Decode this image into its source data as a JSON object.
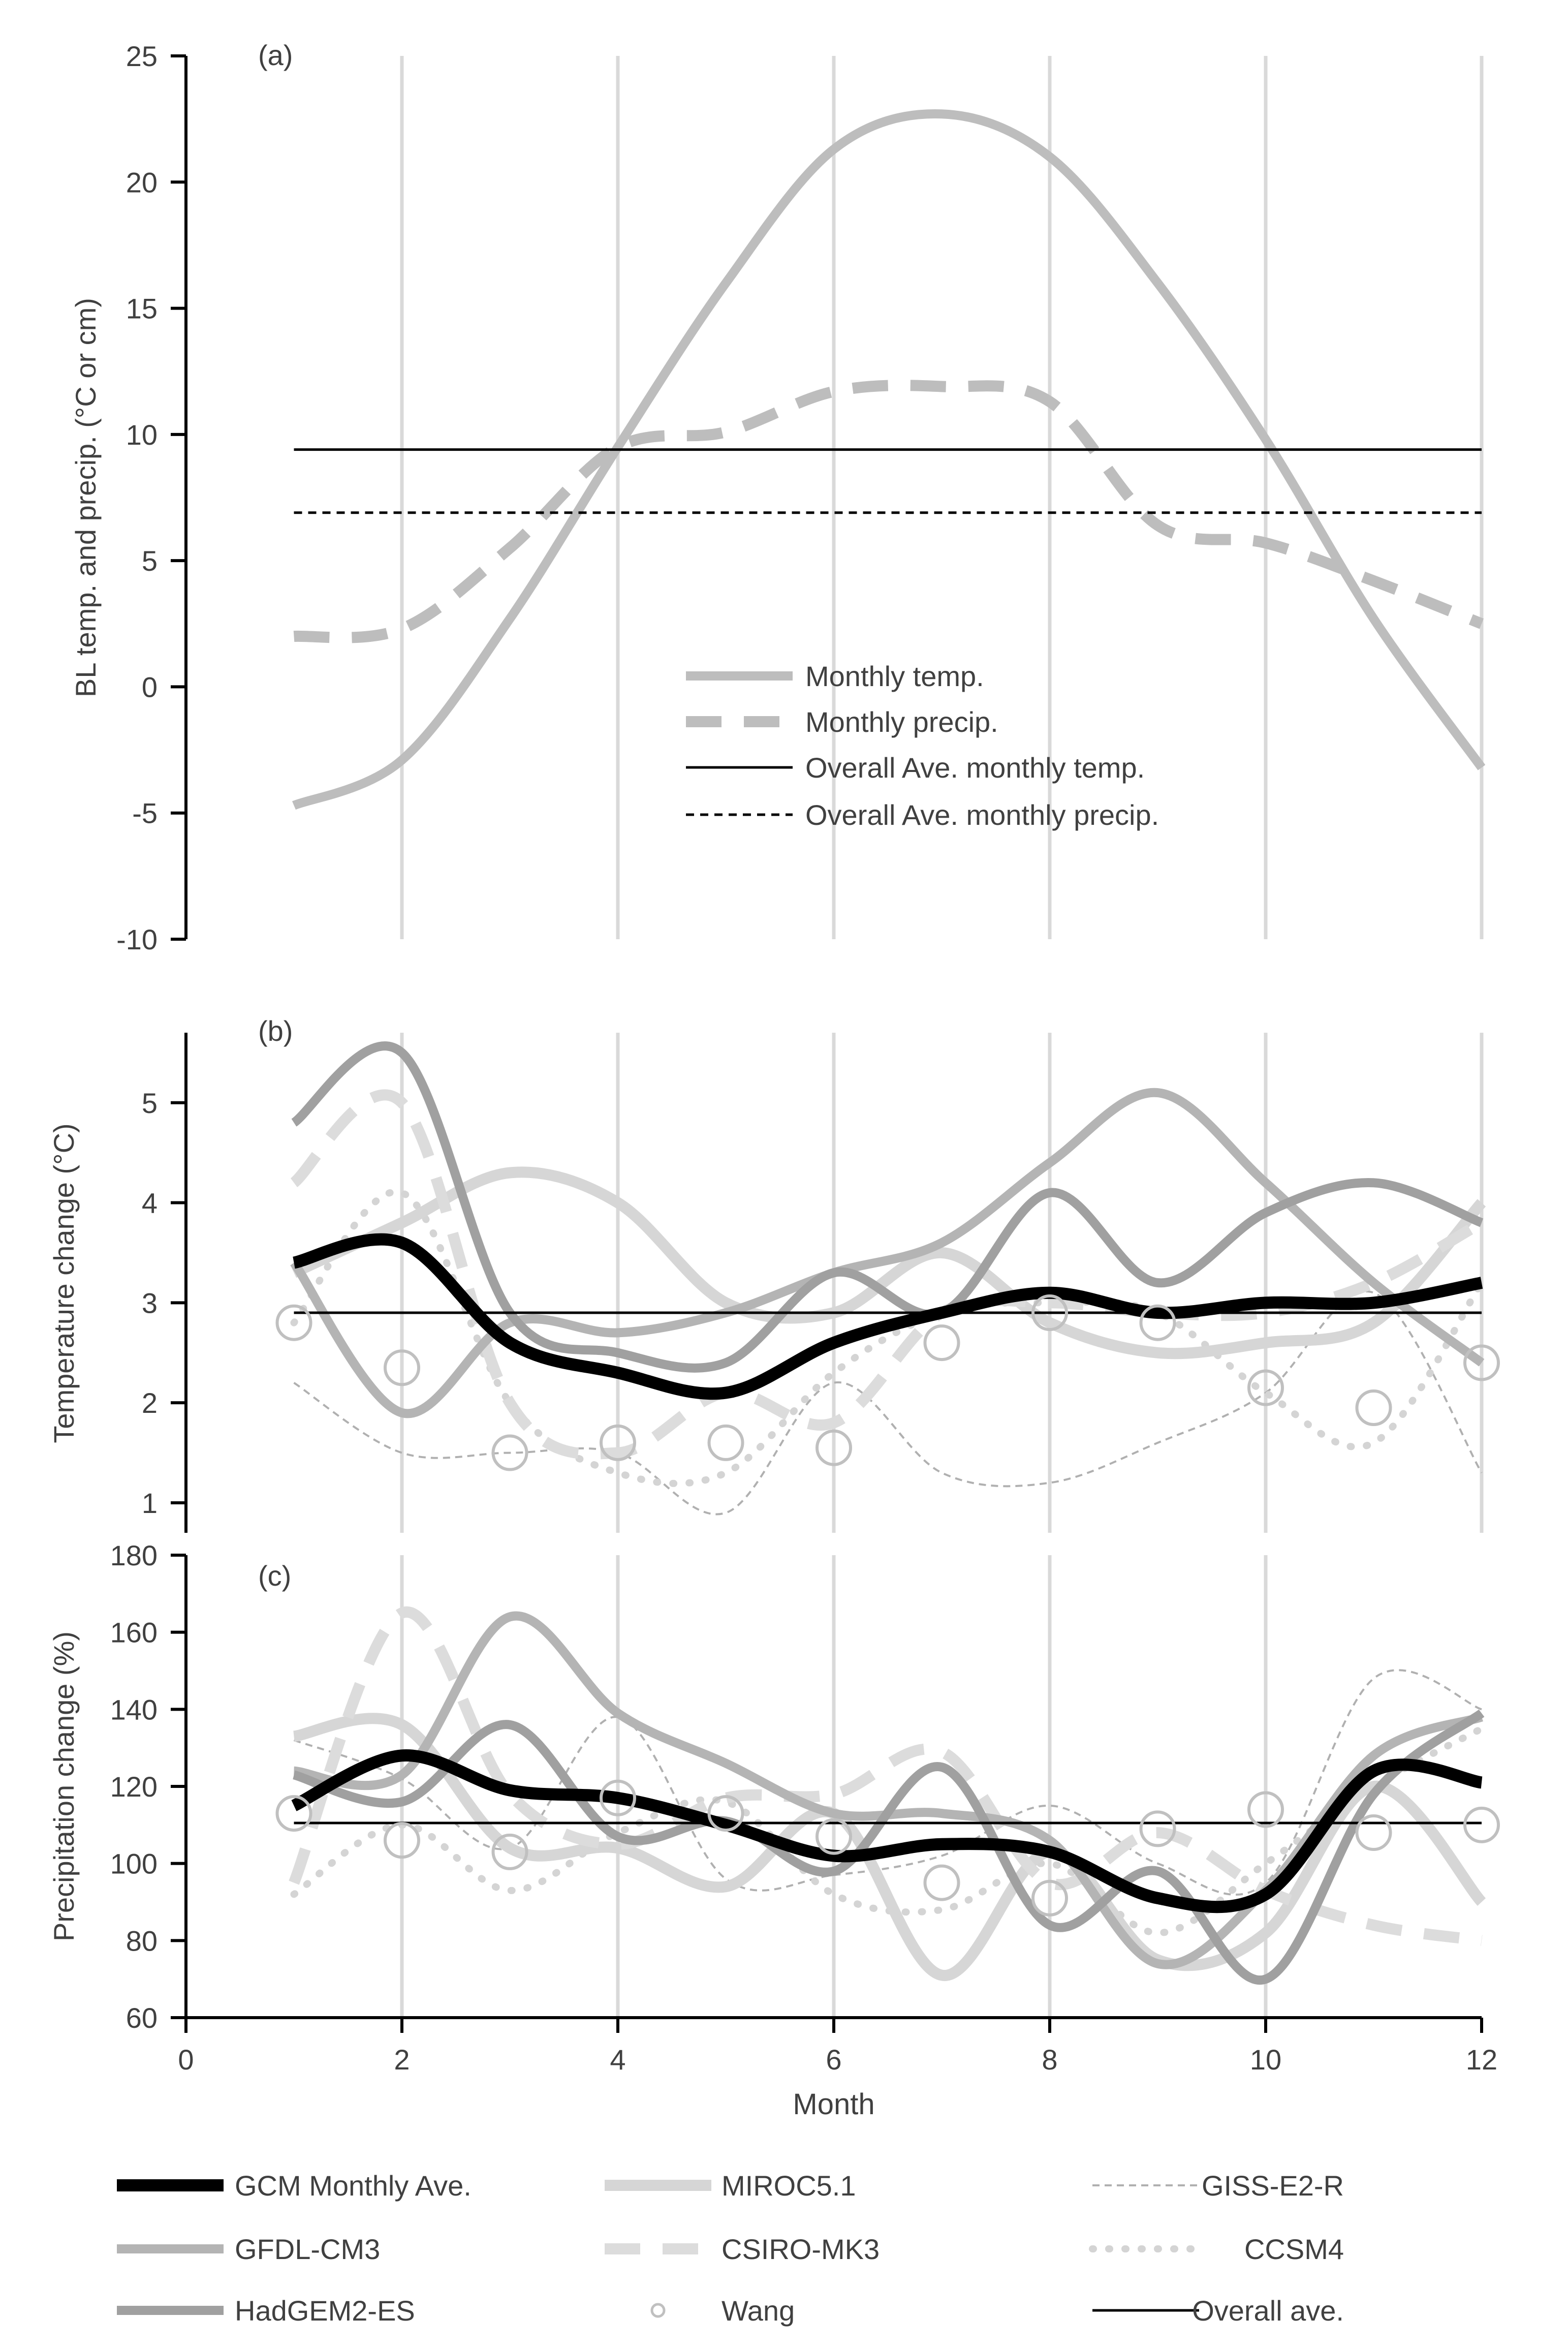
{
  "colors": {
    "axis": "#000000",
    "grid": "#d9d9d9",
    "text": "#404040",
    "gcm": "#000000",
    "miroc": "#d6d6d6",
    "giss": "#b0b0b0",
    "gfdl": "#b4b4b4",
    "csiro": "#dcdcdc",
    "ccsm4": "#d4d4d4",
    "hadgem": "#a0a0a0",
    "wang": "#c0c0c0",
    "overall": "#000000",
    "temp": "#bdbdbd",
    "precip": "#bdbdbd"
  },
  "x_axis": {
    "label": "Month",
    "ticks": [
      "0",
      "2",
      "4",
      "6",
      "8",
      "10",
      "12"
    ],
    "range": [
      0,
      12
    ]
  },
  "chart_data": [
    {
      "id": "a",
      "type": "line",
      "panel_label": "(a)",
      "ylabel": "BL temp. and precip. (°C or cm)",
      "ylim": [
        -10,
        25
      ],
      "yticks": [
        "-10",
        "-5",
        "0",
        "5",
        "10",
        "15",
        "20",
        "25"
      ],
      "grid_x": [
        2,
        4,
        6,
        8,
        10,
        12
      ],
      "x": [
        1,
        2,
        3,
        4,
        5,
        6,
        7,
        8,
        9,
        10,
        11,
        12
      ],
      "series": [
        {
          "name": "Monthly temp.",
          "key": "temp",
          "style": "solid-thick",
          "values": [
            -4.7,
            -2.9,
            2.7,
            9.5,
            16,
            21.3,
            22.7,
            21,
            16,
            9.8,
            2.7,
            -3.2
          ]
        },
        {
          "name": "Monthly precip.",
          "key": "precip",
          "style": "dash-thick",
          "values": [
            2.0,
            2.3,
            5.5,
            9.5,
            10.1,
            11.7,
            11.9,
            11.3,
            6.4,
            5.7,
            4.2,
            2.5
          ]
        },
        {
          "name": "Overall Ave. monthly temp.",
          "key": "overall",
          "style": "solid-thin",
          "values": [
            9.4,
            9.4,
            9.4,
            9.4,
            9.4,
            9.4,
            9.4,
            9.4,
            9.4,
            9.4,
            9.4,
            9.4
          ]
        },
        {
          "name": "Overall Ave. monthly precip.",
          "key": "overall",
          "style": "dash-thin",
          "values": [
            6.9,
            6.9,
            6.9,
            6.9,
            6.9,
            6.9,
            6.9,
            6.9,
            6.9,
            6.9,
            6.9,
            6.9
          ]
        }
      ]
    },
    {
      "id": "b",
      "type": "line",
      "panel_label": "(b)",
      "ylabel": "Temperature change (°C)",
      "ylim": [
        0.7,
        5.7
      ],
      "yticks": [
        "1",
        "2",
        "3",
        "4",
        "5"
      ],
      "grid_x": [
        2,
        4,
        6,
        8,
        10,
        12
      ],
      "x": [
        1,
        2,
        3,
        4,
        5,
        6,
        7,
        8,
        9,
        10,
        11,
        12
      ],
      "series": [
        {
          "name": "GISS-E2-R",
          "key": "giss",
          "values": [
            2.2,
            1.5,
            1.5,
            1.5,
            0.9,
            2.2,
            1.3,
            1.2,
            1.6,
            2.1,
            3.1,
            1.3
          ]
        },
        {
          "name": "CCSM4",
          "key": "ccsm4",
          "values": [
            2.8,
            4.1,
            2.0,
            1.3,
            1.3,
            2.3,
            2.9,
            3.0,
            2.9,
            2.1,
            1.6,
            3.2
          ]
        },
        {
          "name": "MIROC5.1",
          "key": "miroc",
          "values": [
            3.3,
            3.8,
            4.3,
            4.0,
            3.0,
            2.9,
            3.5,
            2.8,
            2.5,
            2.6,
            2.8,
            4.0
          ]
        },
        {
          "name": "CSIRO-MK3",
          "key": "csiro",
          "values": [
            4.2,
            5.0,
            2.0,
            1.5,
            2.1,
            1.8,
            2.9,
            3.0,
            2.9,
            2.9,
            3.2,
            3.8
          ]
        },
        {
          "name": "GFDL-CM3",
          "key": "gfdl",
          "values": [
            3.4,
            1.9,
            2.8,
            2.7,
            2.9,
            3.3,
            3.6,
            4.4,
            5.1,
            4.2,
            3.2,
            2.4
          ]
        },
        {
          "name": "HadGEM2-ES",
          "key": "hadgem",
          "values": [
            4.8,
            5.5,
            2.9,
            2.5,
            2.4,
            3.3,
            2.9,
            4.1,
            3.2,
            3.9,
            4.2,
            3.8
          ]
        },
        {
          "name": "GCM Monthly Ave.",
          "key": "gcm",
          "values": [
            3.4,
            3.6,
            2.6,
            2.3,
            2.1,
            2.6,
            2.9,
            3.1,
            2.9,
            3.0,
            3.0,
            3.2
          ]
        },
        {
          "name": "Overall ave.",
          "key": "overall",
          "values": [
            2.9,
            2.9,
            2.9,
            2.9,
            2.9,
            2.9,
            2.9,
            2.9,
            2.9,
            2.9,
            2.9,
            2.9
          ]
        },
        {
          "name": "Wang",
          "key": "wang",
          "values": [
            2.8,
            2.35,
            1.5,
            1.6,
            1.6,
            1.55,
            2.6,
            2.9,
            2.8,
            2.15,
            1.95,
            2.4
          ]
        }
      ]
    },
    {
      "id": "c",
      "type": "line",
      "panel_label": "(c)",
      "ylabel": "Precipitation change (%)",
      "ylim": [
        60,
        180
      ],
      "yticks": [
        "60",
        "80",
        "100",
        "120",
        "140",
        "160",
        "180"
      ],
      "grid_x": [
        2,
        4,
        6,
        8,
        10
      ],
      "x": [
        1,
        2,
        3,
        4,
        5,
        6,
        7,
        8,
        9,
        10,
        11,
        12
      ],
      "series": [
        {
          "name": "GISS-E2-R",
          "key": "giss",
          "values": [
            132,
            122,
            104,
            138,
            96,
            97,
            102,
            115,
            100,
            95,
            148,
            140
          ]
        },
        {
          "name": "CCSM4",
          "key": "ccsm4",
          "values": [
            92,
            110,
            93,
            108,
            116,
            92,
            88,
            100,
            82,
            100,
            120,
            135
          ]
        },
        {
          "name": "MIROC5.1",
          "key": "miroc",
          "values": [
            133,
            136,
            104,
            104,
            94,
            113,
            71,
            103,
            75,
            82,
            120,
            90
          ]
        },
        {
          "name": "CSIRO-MK3",
          "key": "csiro",
          "values": [
            95,
            165,
            118,
            105,
            117,
            118,
            129,
            95,
            108,
            93,
            84,
            80
          ]
        },
        {
          "name": "GFDL-CM3",
          "key": "gfdl",
          "values": [
            124,
            123,
            164,
            139,
            126,
            113,
            113,
            106,
            74,
            93,
            128,
            138
          ]
        },
        {
          "name": "HadGEM2-ES",
          "key": "hadgem",
          "values": [
            123,
            116,
            136,
            107,
            111,
            98,
            125,
            84,
            98,
            70,
            118,
            139
          ]
        },
        {
          "name": "GCM Monthly Ave.",
          "key": "gcm",
          "values": [
            115,
            128,
            119,
            117,
            110,
            102,
            105,
            103,
            91,
            92,
            124,
            121
          ]
        },
        {
          "name": "Overall ave.",
          "key": "overall",
          "values": [
            110.5,
            110.5,
            110.5,
            110.5,
            110.5,
            110.5,
            110.5,
            110.5,
            110.5,
            110.5,
            110.5,
            110.5
          ]
        },
        {
          "name": "Wang",
          "key": "wang",
          "values": [
            113,
            106,
            103,
            117,
            113,
            107,
            95,
            91,
            109,
            114,
            108,
            110
          ]
        }
      ]
    }
  ],
  "legend_a": [
    {
      "label": "Monthly temp.",
      "style": "solid-thick",
      "key": "temp"
    },
    {
      "label": "Monthly precip.",
      "style": "dash-thick",
      "key": "precip"
    },
    {
      "label": "Overall Ave. monthly temp.",
      "style": "solid-thin",
      "key": "overall"
    },
    {
      "label": "Overall Ave. monthly precip.",
      "style": "dash-thin",
      "key": "overall"
    }
  ],
  "legend_bottom": [
    {
      "label": "GCM Monthly Ave.",
      "key": "gcm"
    },
    {
      "label": "MIROC5.1",
      "key": "miroc"
    },
    {
      "label": "GISS-E2-R",
      "key": "giss"
    },
    {
      "label": "GFDL-CM3",
      "key": "gfdl"
    },
    {
      "label": "CSIRO-MK3",
      "key": "csiro"
    },
    {
      "label": "CCSM4",
      "key": "ccsm4"
    },
    {
      "label": "HadGEM2-ES",
      "key": "hadgem"
    },
    {
      "label": "Wang",
      "key": "wang"
    },
    {
      "label": "Overall ave.",
      "key": "overall"
    }
  ]
}
